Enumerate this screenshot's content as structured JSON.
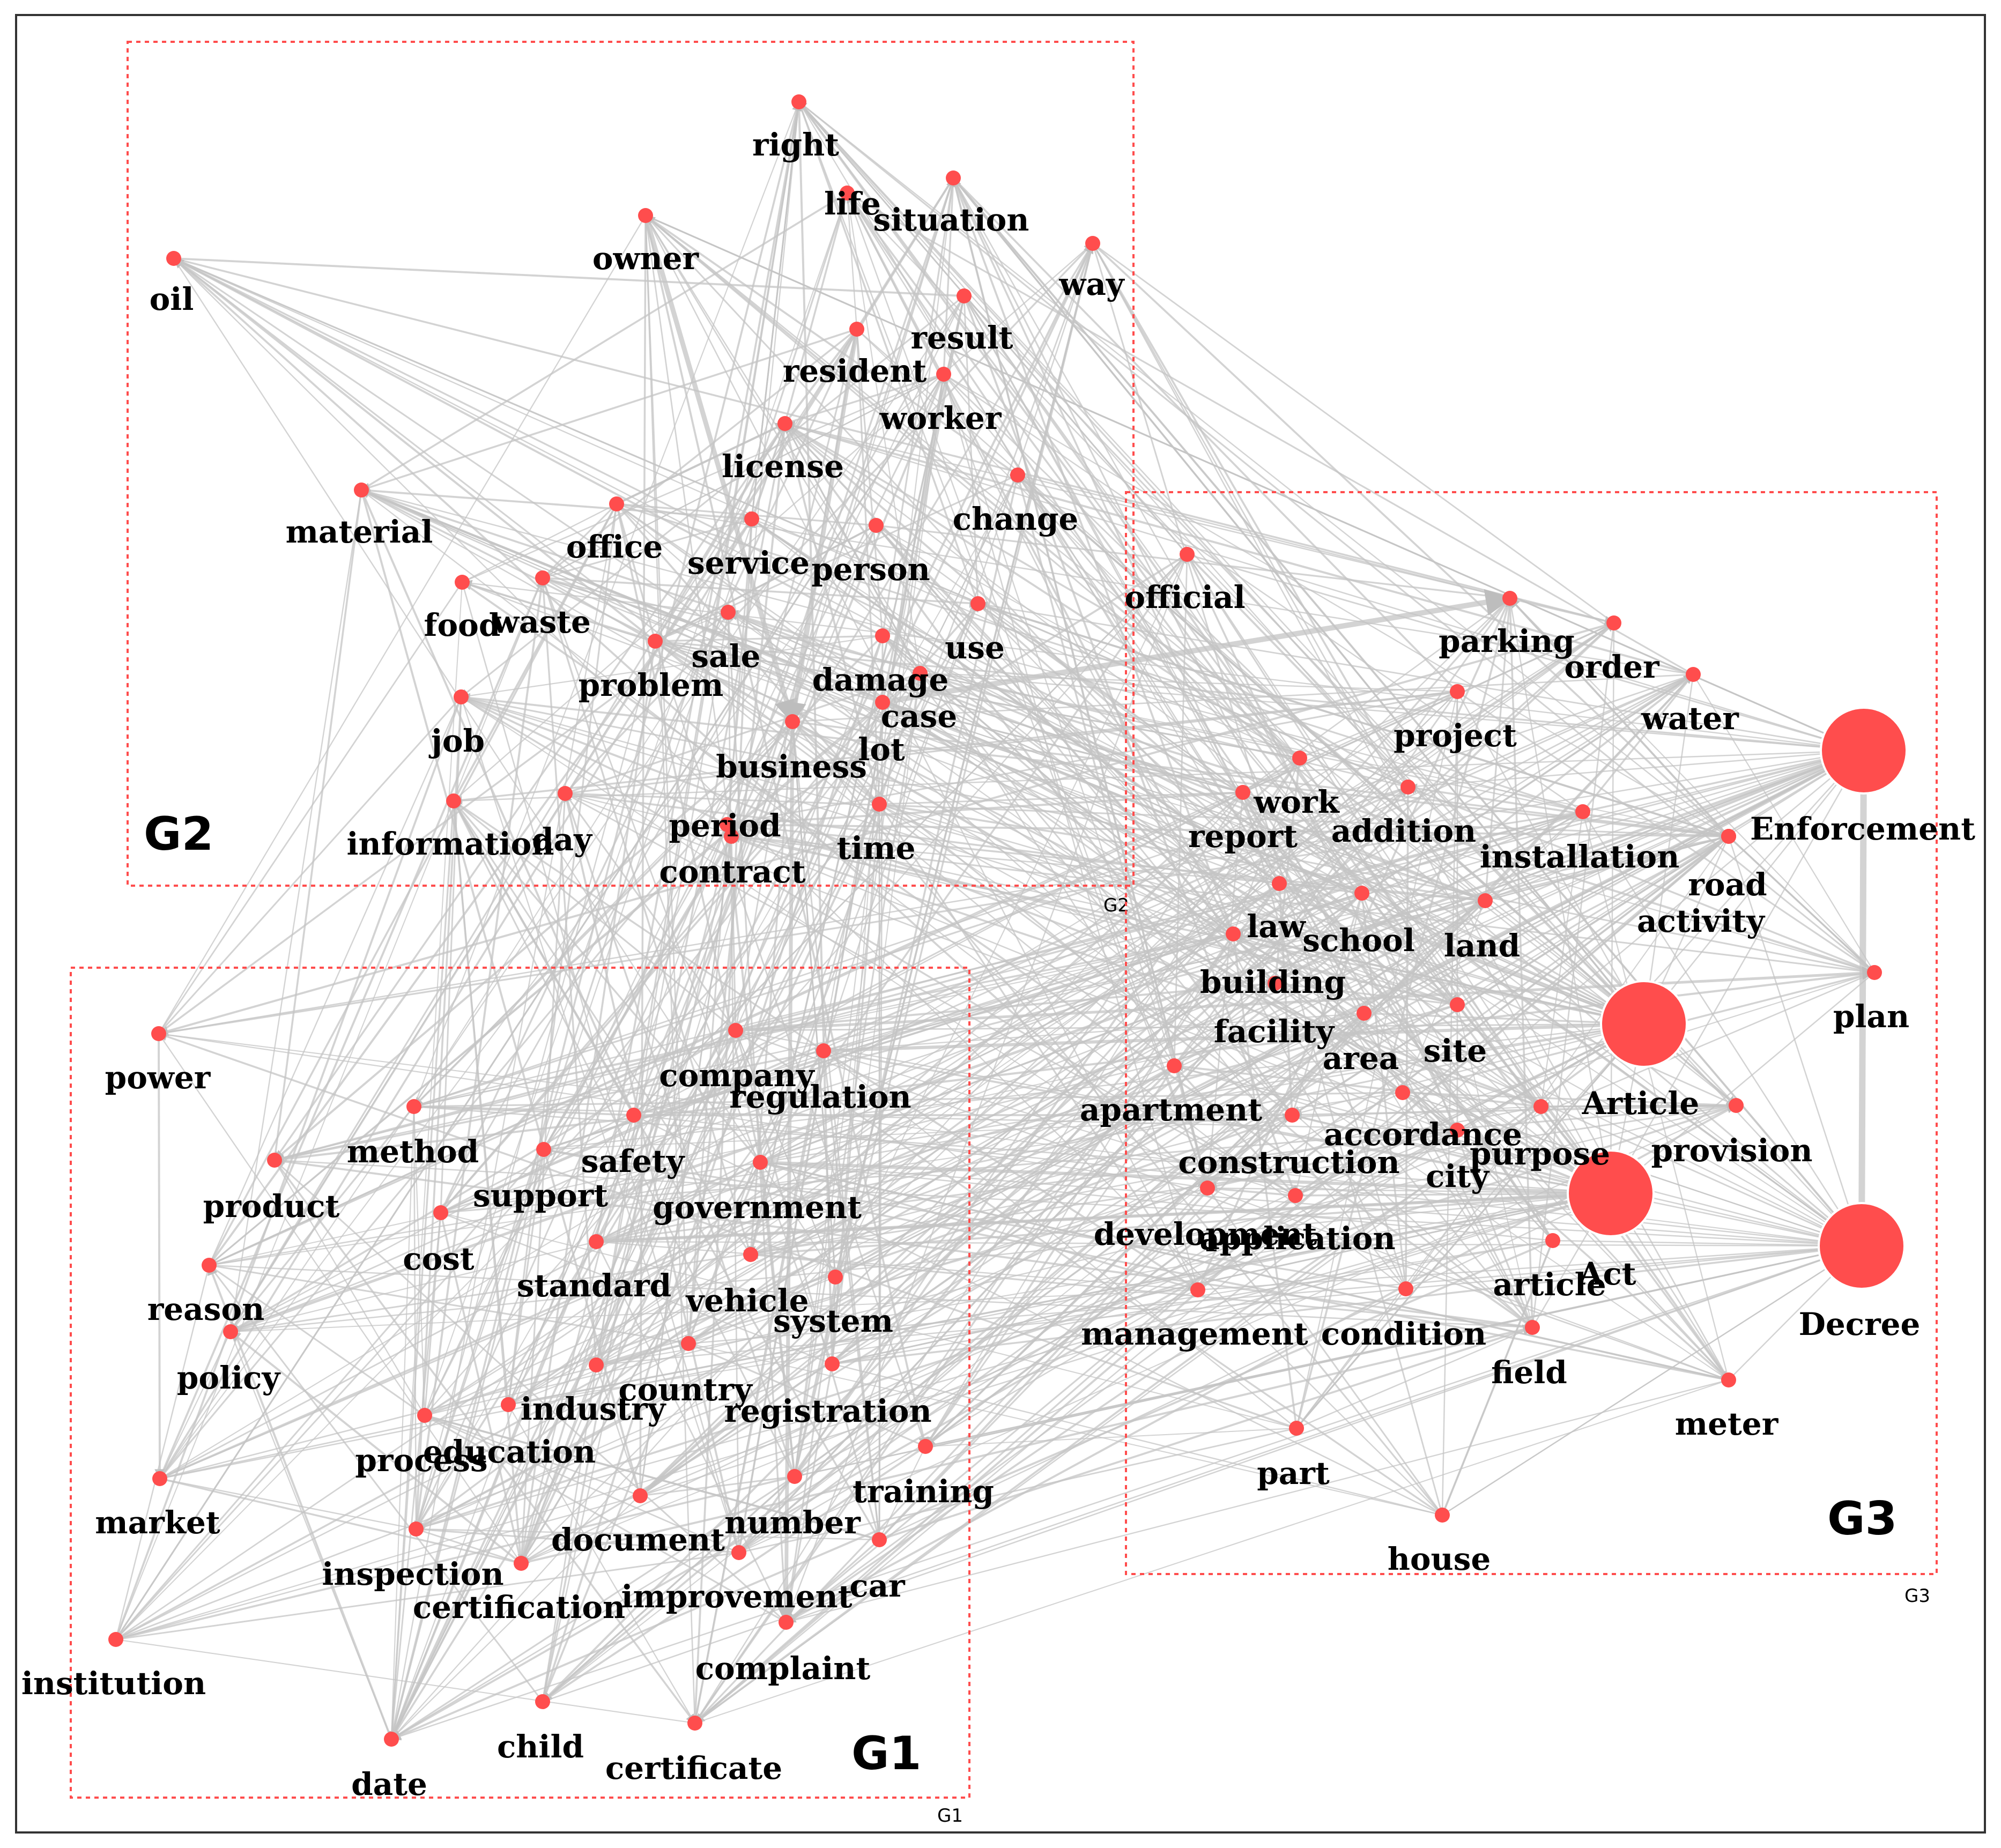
{
  "groups": [
    {
      "id": "G1",
      "label": "G1",
      "tag": "G1"
    },
    {
      "id": "G2",
      "label": "G2",
      "tag": "G2"
    },
    {
      "id": "G3",
      "label": "G3",
      "tag": "G3"
    }
  ],
  "colors": {
    "node": "#ff4d4d",
    "edge": "#c4c4c4",
    "group_border": "#ff4d4d",
    "frame": "#333333"
  },
  "nodes": [
    {
      "id": "right",
      "label": "right",
      "group": "G2"
    },
    {
      "id": "life",
      "label": "life",
      "group": "G2"
    },
    {
      "id": "situation",
      "label": "situation",
      "group": "G2"
    },
    {
      "id": "owner",
      "label": "owner",
      "group": "G2"
    },
    {
      "id": "way",
      "label": "way",
      "group": "G2"
    },
    {
      "id": "oil",
      "label": "oil",
      "group": "G2"
    },
    {
      "id": "result",
      "label": "result",
      "group": "G2"
    },
    {
      "id": "resident",
      "label": "resident",
      "group": "G2"
    },
    {
      "id": "worker",
      "label": "worker",
      "group": "G2"
    },
    {
      "id": "license",
      "label": "license",
      "group": "G2"
    },
    {
      "id": "change",
      "label": "change",
      "group": "G2"
    },
    {
      "id": "material",
      "label": "material",
      "group": "G2"
    },
    {
      "id": "office",
      "label": "office",
      "group": "G2"
    },
    {
      "id": "service",
      "label": "service",
      "group": "G2"
    },
    {
      "id": "person",
      "label": "person",
      "group": "G2"
    },
    {
      "id": "food",
      "label": "food",
      "group": "G2"
    },
    {
      "id": "waste",
      "label": "waste",
      "group": "G2"
    },
    {
      "id": "use",
      "label": "use",
      "group": "G2"
    },
    {
      "id": "sale",
      "label": "sale",
      "group": "G2"
    },
    {
      "id": "problem",
      "label": "problem",
      "group": "G2"
    },
    {
      "id": "damage",
      "label": "damage",
      "group": "G2"
    },
    {
      "id": "case",
      "label": "case",
      "group": "G2"
    },
    {
      "id": "job",
      "label": "job",
      "group": "G2"
    },
    {
      "id": "lot",
      "label": "lot",
      "group": "G2"
    },
    {
      "id": "business",
      "label": "business",
      "group": "G2"
    },
    {
      "id": "information",
      "label": "information",
      "group": "G2"
    },
    {
      "id": "day",
      "label": "day",
      "group": "G2"
    },
    {
      "id": "period",
      "label": "period",
      "group": "G2"
    },
    {
      "id": "time",
      "label": "time",
      "group": "G2"
    },
    {
      "id": "contract",
      "label": "contract",
      "group": "G2"
    },
    {
      "id": "official",
      "label": "official",
      "group": "G3"
    },
    {
      "id": "parking",
      "label": "parking",
      "group": "G3"
    },
    {
      "id": "order",
      "label": "order",
      "group": "G3"
    },
    {
      "id": "water",
      "label": "water",
      "group": "G3"
    },
    {
      "id": "project",
      "label": "project",
      "group": "G3"
    },
    {
      "id": "Enforcement",
      "label": "Enforcement",
      "group": "G3"
    },
    {
      "id": "work",
      "label": "work",
      "group": "G3"
    },
    {
      "id": "report",
      "label": "report",
      "group": "G3"
    },
    {
      "id": "addition",
      "label": "addition",
      "group": "G3"
    },
    {
      "id": "installation",
      "label": "installation",
      "group": "G3"
    },
    {
      "id": "road",
      "label": "road",
      "group": "G3"
    },
    {
      "id": "activity",
      "label": "activity",
      "group": "G3"
    },
    {
      "id": "law",
      "label": "law",
      "group": "G3"
    },
    {
      "id": "school",
      "label": "school",
      "group": "G3"
    },
    {
      "id": "land",
      "label": "land",
      "group": "G3"
    },
    {
      "id": "building",
      "label": "building",
      "group": "G3"
    },
    {
      "id": "plan",
      "label": "plan",
      "group": "G3"
    },
    {
      "id": "facility",
      "label": "facility",
      "group": "G3"
    },
    {
      "id": "area",
      "label": "area",
      "group": "G3"
    },
    {
      "id": "site",
      "label": "site",
      "group": "G3"
    },
    {
      "id": "Article",
      "label": "Article",
      "group": "G3"
    },
    {
      "id": "apartment",
      "label": "apartment",
      "group": "G3"
    },
    {
      "id": "accordance",
      "label": "accordance",
      "group": "G3"
    },
    {
      "id": "provision",
      "label": "provision",
      "group": "G3"
    },
    {
      "id": "construction",
      "label": "construction",
      "group": "G3"
    },
    {
      "id": "purpose",
      "label": "purpose",
      "group": "G3"
    },
    {
      "id": "city",
      "label": "city",
      "group": "G3"
    },
    {
      "id": "development",
      "label": "development",
      "group": "G3"
    },
    {
      "id": "application",
      "label": "application",
      "group": "G3"
    },
    {
      "id": "Act",
      "label": "Act",
      "group": "G3"
    },
    {
      "id": "Decree",
      "label": "Decree",
      "group": "G3"
    },
    {
      "id": "article",
      "label": "article",
      "group": "G3"
    },
    {
      "id": "management",
      "label": "management",
      "group": "G3"
    },
    {
      "id": "condition",
      "label": "condition",
      "group": "G3"
    },
    {
      "id": "field",
      "label": "field",
      "group": "G3"
    },
    {
      "id": "meter",
      "label": "meter",
      "group": "G3"
    },
    {
      "id": "part",
      "label": "part",
      "group": "G3"
    },
    {
      "id": "house",
      "label": "house",
      "group": "G3"
    },
    {
      "id": "power",
      "label": "power",
      "group": "G1"
    },
    {
      "id": "company",
      "label": "company",
      "group": "G1"
    },
    {
      "id": "regulation",
      "label": "regulation",
      "group": "G1"
    },
    {
      "id": "method",
      "label": "method",
      "group": "G1"
    },
    {
      "id": "safety",
      "label": "safety",
      "group": "G1"
    },
    {
      "id": "product",
      "label": "product",
      "group": "G1"
    },
    {
      "id": "support",
      "label": "support",
      "group": "G1"
    },
    {
      "id": "government",
      "label": "government",
      "group": "G1"
    },
    {
      "id": "cost",
      "label": "cost",
      "group": "G1"
    },
    {
      "id": "reason",
      "label": "reason",
      "group": "G1"
    },
    {
      "id": "standard",
      "label": "standard",
      "group": "G1"
    },
    {
      "id": "vehicle",
      "label": "vehicle",
      "group": "G1"
    },
    {
      "id": "system",
      "label": "system",
      "group": "G1"
    },
    {
      "id": "policy",
      "label": "policy",
      "group": "G1"
    },
    {
      "id": "country",
      "label": "country",
      "group": "G1"
    },
    {
      "id": "industry",
      "label": "industry",
      "group": "G1"
    },
    {
      "id": "registration",
      "label": "registration",
      "group": "G1"
    },
    {
      "id": "education",
      "label": "education",
      "group": "G1"
    },
    {
      "id": "process",
      "label": "process",
      "group": "G1"
    },
    {
      "id": "market",
      "label": "market",
      "group": "G1"
    },
    {
      "id": "training",
      "label": "training",
      "group": "G1"
    },
    {
      "id": "document",
      "label": "document",
      "group": "G1"
    },
    {
      "id": "number",
      "label": "number",
      "group": "G1"
    },
    {
      "id": "inspection",
      "label": "inspection",
      "group": "G1"
    },
    {
      "id": "certification",
      "label": "certification",
      "group": "G1"
    },
    {
      "id": "improvement",
      "label": "improvement",
      "group": "G1"
    },
    {
      "id": "car",
      "label": "car",
      "group": "G1"
    },
    {
      "id": "institution",
      "label": "institution",
      "group": "G1"
    },
    {
      "id": "complaint",
      "label": "complaint",
      "group": "G1"
    },
    {
      "id": "child",
      "label": "child",
      "group": "G1"
    },
    {
      "id": "date",
      "label": "date",
      "group": "G1"
    },
    {
      "id": "certificate",
      "label": "certificate",
      "group": "G1"
    }
  ]
}
